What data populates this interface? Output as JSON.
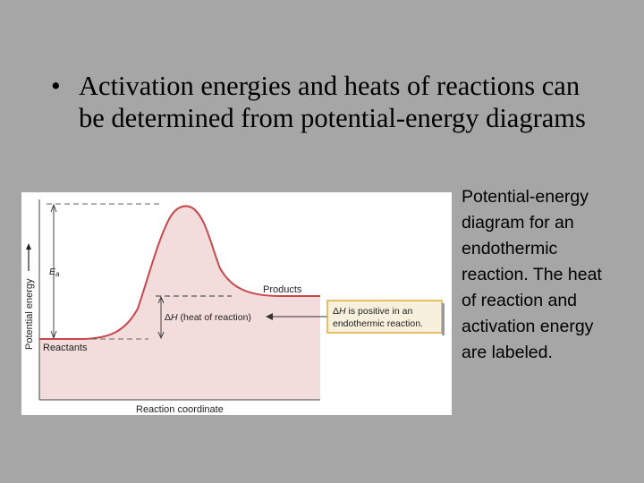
{
  "slide": {
    "bullet_symbol": "•",
    "bullet_text": "Activation energies and heats of reactions can be determined from potential-energy diagrams",
    "caption": "Potential-energy diagram for an endothermic reaction. The heat of reaction and activation energy are labeled."
  },
  "diagram": {
    "y_axis_label": "Potential energy",
    "x_axis_label": "Reaction coordinate",
    "ea_label_main": "E",
    "ea_label_sub": "a",
    "products_label": "Products",
    "reactants_label": "Reactants",
    "delta_h_symbol": "Δ",
    "delta_h_italic": "H",
    "delta_h_rest": " (heat of reaction)",
    "callout_line1_symbol": "Δ",
    "callout_line1_italic": "H",
    "callout_line1_rest": " is positive in an",
    "callout_line2": "endothermic reaction.",
    "colors": {
      "curve": "#c8474b",
      "fill": "#f2dcdc",
      "callout_bg": "#f6f0dc",
      "callout_border": "#e0aa3a"
    }
  }
}
